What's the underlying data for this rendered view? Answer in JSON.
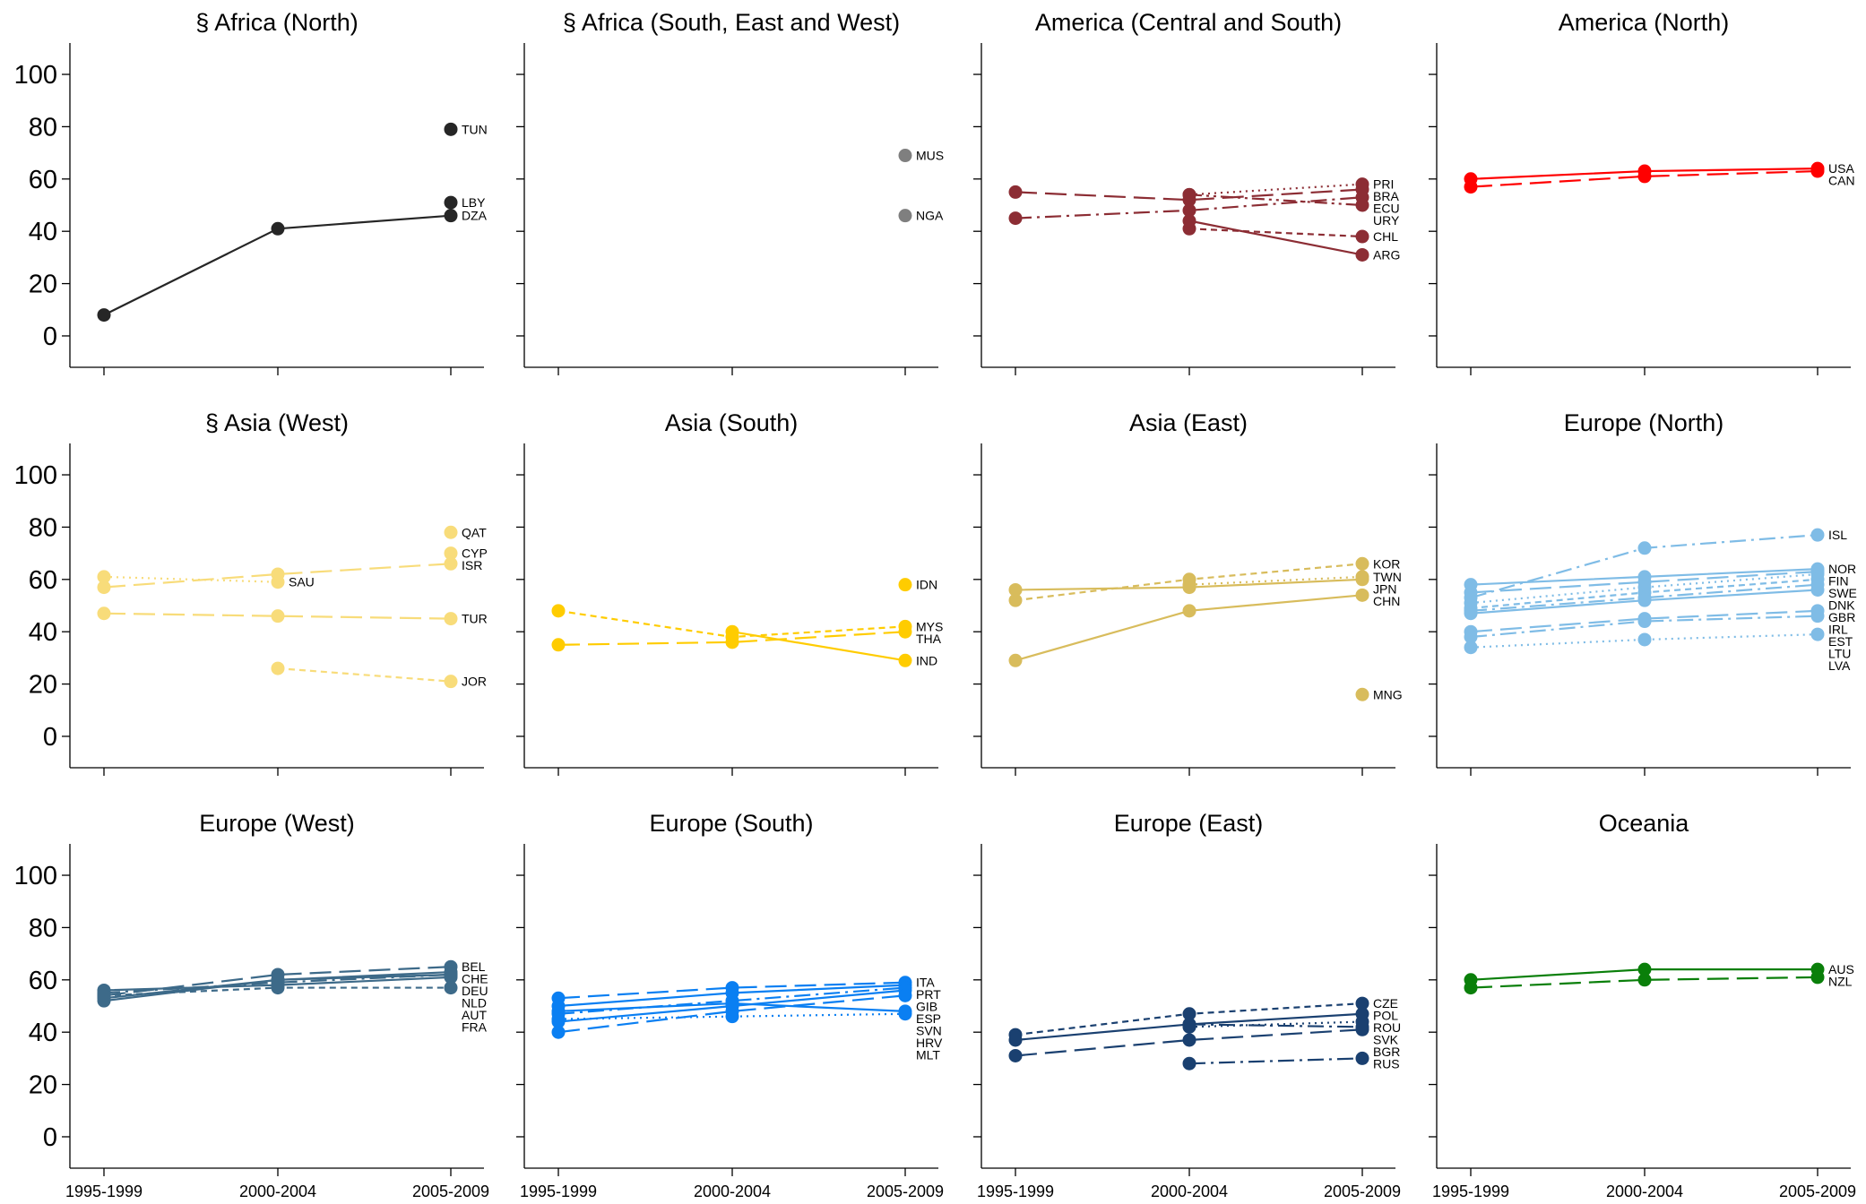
{
  "chart_data": [
    {
      "type": "line",
      "title": "§ Africa (North)",
      "color": "#262626",
      "x": [
        "1995-1999",
        "2000-2004",
        "2005-2009"
      ],
      "ylim": [
        -12,
        112
      ],
      "yticks": [
        0,
        20,
        40,
        60,
        80,
        100
      ],
      "series": [
        {
          "name": "TUN",
          "values": [
            null,
            null,
            79
          ],
          "dash": "solid"
        },
        {
          "name": "LBY",
          "values": [
            null,
            null,
            51
          ],
          "dash": "solid"
        },
        {
          "name": "DZA",
          "values": [
            8,
            41,
            46
          ],
          "dash": "solid"
        }
      ]
    },
    {
      "type": "line",
      "title": "§ Africa (South, East and West)",
      "color": "#7f7f7f",
      "x": [
        "1995-1999",
        "2000-2004",
        "2005-2009"
      ],
      "ylim": [
        -12,
        112
      ],
      "yticks": [
        0,
        20,
        40,
        60,
        80,
        100
      ],
      "series": [
        {
          "name": "MUS",
          "values": [
            null,
            null,
            69
          ],
          "dash": "solid"
        },
        {
          "name": "NGA",
          "values": [
            null,
            null,
            46
          ],
          "dash": "solid"
        }
      ]
    },
    {
      "type": "line",
      "title": "America (Central and South)",
      "color": "#8c2d34",
      "x": [
        "1995-1999",
        "2000-2004",
        "2005-2009"
      ],
      "ylim": [
        -12,
        112
      ],
      "yticks": [
        0,
        20,
        40,
        60,
        80,
        100
      ],
      "series": [
        {
          "name": "PRI",
          "values": [
            null,
            54,
            58
          ],
          "dash": "dot"
        },
        {
          "name": "BRA",
          "values": [
            55,
            52,
            56
          ],
          "dash": "longdash"
        },
        {
          "name": "ECU",
          "values": [
            45,
            48,
            53
          ],
          "dash": "dashdot"
        },
        {
          "name": "URY",
          "values": [
            null,
            54,
            50
          ],
          "dash": "dashdotdot"
        },
        {
          "name": "CHL",
          "values": [
            null,
            41,
            38
          ],
          "dash": "shortdash"
        },
        {
          "name": "ARG",
          "values": [
            null,
            44,
            31
          ],
          "dash": "solid"
        }
      ]
    },
    {
      "type": "line",
      "title": "America (North)",
      "color": "#ff0000",
      "x": [
        "1995-1999",
        "2000-2004",
        "2005-2009"
      ],
      "ylim": [
        -12,
        112
      ],
      "yticks": [
        0,
        20,
        40,
        60,
        80,
        100
      ],
      "series": [
        {
          "name": "USA",
          "values": [
            60,
            63,
            64
          ],
          "dash": "solid"
        },
        {
          "name": "CAN",
          "values": [
            57,
            61,
            63
          ],
          "dash": "longdash"
        }
      ]
    },
    {
      "type": "line",
      "title": "§ Asia (West)",
      "color": "#f8dc7a",
      "x": [
        "1995-1999",
        "2000-2004",
        "2005-2009"
      ],
      "ylim": [
        -12,
        112
      ],
      "yticks": [
        0,
        20,
        40,
        60,
        80,
        100
      ],
      "series": [
        {
          "name": "QAT",
          "values": [
            null,
            null,
            78
          ],
          "dash": "solid"
        },
        {
          "name": "CYP",
          "values": [
            null,
            null,
            70
          ],
          "dash": "solid"
        },
        {
          "name": "ISR",
          "values": [
            57,
            62,
            66
          ],
          "dash": "longdash"
        },
        {
          "name": "SAU",
          "values": [
            61,
            59,
            null
          ],
          "dash": "dot"
        },
        {
          "name": "TUR",
          "values": [
            47,
            46,
            45
          ],
          "dash": "longdash"
        },
        {
          "name": "JOR",
          "values": [
            null,
            26,
            21
          ],
          "dash": "shortdash"
        }
      ]
    },
    {
      "type": "line",
      "title": "Asia (South)",
      "color": "#ffcc00",
      "x": [
        "1995-1999",
        "2000-2004",
        "2005-2009"
      ],
      "ylim": [
        -12,
        112
      ],
      "yticks": [
        0,
        20,
        40,
        60,
        80,
        100
      ],
      "series": [
        {
          "name": "IDN",
          "values": [
            null,
            null,
            58
          ],
          "dash": "solid"
        },
        {
          "name": "MYS",
          "values": [
            48,
            38,
            42
          ],
          "dash": "shortdash"
        },
        {
          "name": "THA",
          "values": [
            35,
            36,
            40
          ],
          "dash": "longdash"
        },
        {
          "name": "IND",
          "values": [
            null,
            40,
            29
          ],
          "dash": "solid"
        }
      ]
    },
    {
      "type": "line",
      "title": "Asia (East)",
      "color": "#d8bc5c",
      "x": [
        "1995-1999",
        "2000-2004",
        "2005-2009"
      ],
      "ylim": [
        -12,
        112
      ],
      "yticks": [
        0,
        20,
        40,
        60,
        80,
        100
      ],
      "series": [
        {
          "name": "KOR",
          "values": [
            52,
            60,
            66
          ],
          "dash": "shortdash"
        },
        {
          "name": "TWN",
          "values": [
            null,
            58,
            61
          ],
          "dash": "dot"
        },
        {
          "name": "JPN",
          "values": [
            56,
            57,
            60
          ],
          "dash": "solid"
        },
        {
          "name": "CHN",
          "values": [
            29,
            48,
            54
          ],
          "dash": "solid"
        },
        {
          "name": "MNG",
          "values": [
            null,
            null,
            16
          ],
          "dash": "solid"
        }
      ]
    },
    {
      "type": "line",
      "title": "Europe (North)",
      "color": "#7fbce6",
      "x": [
        "1995-1999",
        "2000-2004",
        "2005-2009"
      ],
      "ylim": [
        -12,
        112
      ],
      "yticks": [
        0,
        20,
        40,
        60,
        80,
        100
      ],
      "series": [
        {
          "name": "ISL",
          "values": [
            53,
            72,
            77
          ],
          "dash": "dashdot"
        },
        {
          "name": "NOR",
          "values": [
            58,
            61,
            64
          ],
          "dash": "solid"
        },
        {
          "name": "FIN",
          "values": [
            55,
            59,
            63
          ],
          "dash": "longdash"
        },
        {
          "name": "SWE",
          "values": [
            51,
            57,
            62
          ],
          "dash": "dot"
        },
        {
          "name": "DNK",
          "values": [
            49,
            55,
            60
          ],
          "dash": "shortdash"
        },
        {
          "name": "GBR",
          "values": [
            48,
            53,
            58
          ],
          "dash": "dashdot"
        },
        {
          "name": "IRL",
          "values": [
            47,
            52,
            56
          ],
          "dash": "solid"
        },
        {
          "name": "EST",
          "values": [
            40,
            45,
            48
          ],
          "dash": "longdash"
        },
        {
          "name": "LTU",
          "values": [
            38,
            44,
            46
          ],
          "dash": "dashdot"
        },
        {
          "name": "LVA",
          "values": [
            34,
            37,
            39
          ],
          "dash": "dot"
        }
      ]
    },
    {
      "type": "line",
      "title": "Europe (West)",
      "color": "#3d6a89",
      "x": [
        "1995-1999",
        "2000-2004",
        "2005-2009"
      ],
      "ylim": [
        -12,
        112
      ],
      "yticks": [
        0,
        20,
        40,
        60,
        80,
        100
      ],
      "series": [
        {
          "name": "BEL",
          "values": [
            54,
            62,
            65
          ],
          "dash": "longdash"
        },
        {
          "name": "CHE",
          "values": [
            53,
            60,
            63
          ],
          "dash": "solid"
        },
        {
          "name": "DEU",
          "values": [
            55,
            59,
            62
          ],
          "dash": "dashdot"
        },
        {
          "name": "AUT",
          "values": [
            56,
            58,
            61
          ],
          "dash": "solid"
        },
        {
          "name": "NLD",
          "values": [
            52,
            60,
            62
          ],
          "dash": "solid"
        },
        {
          "name": "FRA",
          "values": [
            54,
            57,
            57
          ],
          "dash": "shortdash"
        }
      ]
    },
    {
      "type": "line",
      "title": "Europe (South)",
      "color": "#0a7ff2",
      "x": [
        "1995-1999",
        "2000-2004",
        "2005-2009"
      ],
      "ylim": [
        -12,
        112
      ],
      "yticks": [
        0,
        20,
        40,
        60,
        80,
        100
      ],
      "series": [
        {
          "name": "ITA",
          "values": [
            53,
            57,
            59
          ],
          "dash": "longdash"
        },
        {
          "name": "PRT",
          "values": [
            50,
            55,
            58
          ],
          "dash": "solid"
        },
        {
          "name": "GIB",
          "values": [
            47,
            52,
            57
          ],
          "dash": "dashdot"
        },
        {
          "name": "ESP",
          "values": [
            44,
            50,
            56
          ],
          "dash": "solid"
        },
        {
          "name": "SVN",
          "values": [
            40,
            48,
            54
          ],
          "dash": "longdash"
        },
        {
          "name": "HRV",
          "values": [
            48,
            51,
            48
          ],
          "dash": "solid"
        },
        {
          "name": "MLT",
          "values": [
            45,
            46,
            47
          ],
          "dash": "dot"
        }
      ]
    },
    {
      "type": "line",
      "title": "Europe (East)",
      "color": "#1a4070",
      "x": [
        "1995-1999",
        "2000-2004",
        "2005-2009"
      ],
      "ylim": [
        -12,
        112
      ],
      "yticks": [
        0,
        20,
        40,
        60,
        80,
        100
      ],
      "series": [
        {
          "name": "CZE",
          "values": [
            39,
            47,
            51
          ],
          "dash": "shortdash"
        },
        {
          "name": "POL",
          "values": [
            37,
            43,
            47
          ],
          "dash": "solid"
        },
        {
          "name": "ROU",
          "values": [
            null,
            42,
            44
          ],
          "dash": "dot"
        },
        {
          "name": "SVK",
          "values": [
            null,
            43,
            42
          ],
          "dash": "dashdot"
        },
        {
          "name": "BGR",
          "values": [
            31,
            37,
            41
          ],
          "dash": "longdash"
        },
        {
          "name": "RUS",
          "values": [
            null,
            28,
            30
          ],
          "dash": "dashdot"
        }
      ]
    },
    {
      "type": "line",
      "title": "Oceania",
      "color": "#0a7f0a",
      "x": [
        "1995-1999",
        "2000-2004",
        "2005-2009"
      ],
      "ylim": [
        -12,
        112
      ],
      "yticks": [
        0,
        20,
        40,
        60,
        80,
        100
      ],
      "series": [
        {
          "name": "AUS",
          "values": [
            60,
            64,
            64
          ],
          "dash": "solid"
        },
        {
          "name": "NZL",
          "values": [
            57,
            60,
            61
          ],
          "dash": "longdash"
        }
      ]
    }
  ]
}
